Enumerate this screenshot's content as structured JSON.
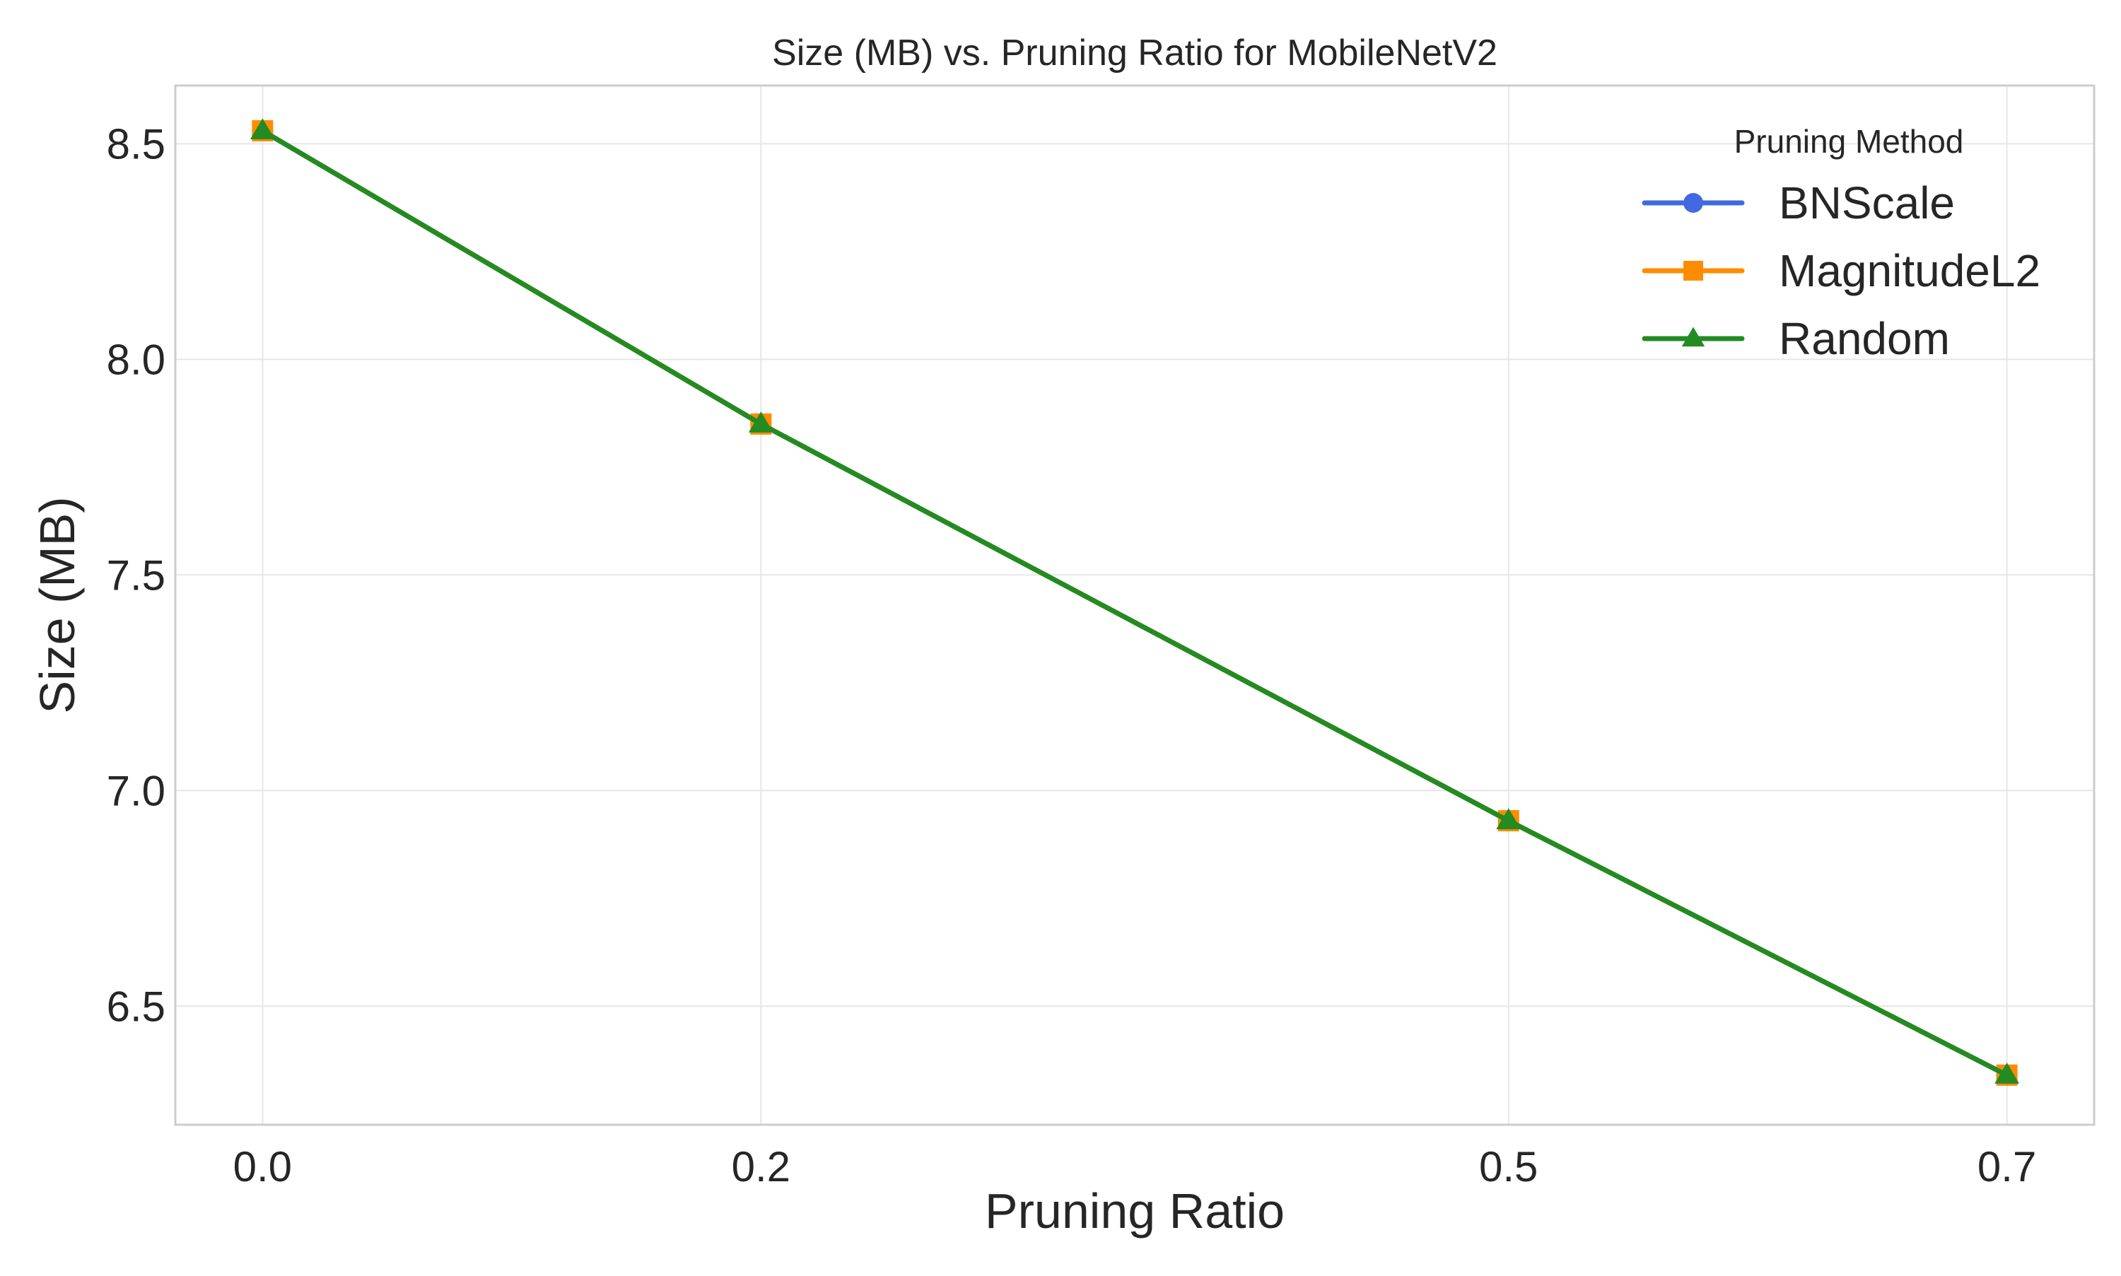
{
  "chart_data": {
    "type": "line",
    "title": "Size (MB) vs. Pruning Ratio for MobileNetV2",
    "xlabel": "Pruning Ratio",
    "ylabel": "Size (MB)",
    "x": [
      0.0,
      0.2,
      0.5,
      0.7
    ],
    "x_tick_labels": [
      "0.0",
      "0.2",
      "0.5",
      "0.7"
    ],
    "y_ticks": [
      6.5,
      7.0,
      7.5,
      8.0,
      8.5
    ],
    "y_tick_labels": [
      "6.5",
      "7.0",
      "7.5",
      "8.0",
      "8.5"
    ],
    "xlim": [
      -0.035,
      0.735
    ],
    "ylim": [
      6.225,
      8.635
    ],
    "grid": true,
    "legend": {
      "title": "Pruning Method",
      "placement": "top-right"
    },
    "series": [
      {
        "name": "BNScale",
        "values": [
          8.53,
          7.85,
          6.93,
          6.34
        ],
        "color": "#4169e1",
        "marker": "circle"
      },
      {
        "name": "MagnitudeL2",
        "values": [
          8.53,
          7.85,
          6.93,
          6.34
        ],
        "color": "#ff8c00",
        "marker": "square"
      },
      {
        "name": "Random",
        "values": [
          8.53,
          7.85,
          6.93,
          6.34
        ],
        "color": "#228b22",
        "marker": "triangle"
      }
    ]
  }
}
